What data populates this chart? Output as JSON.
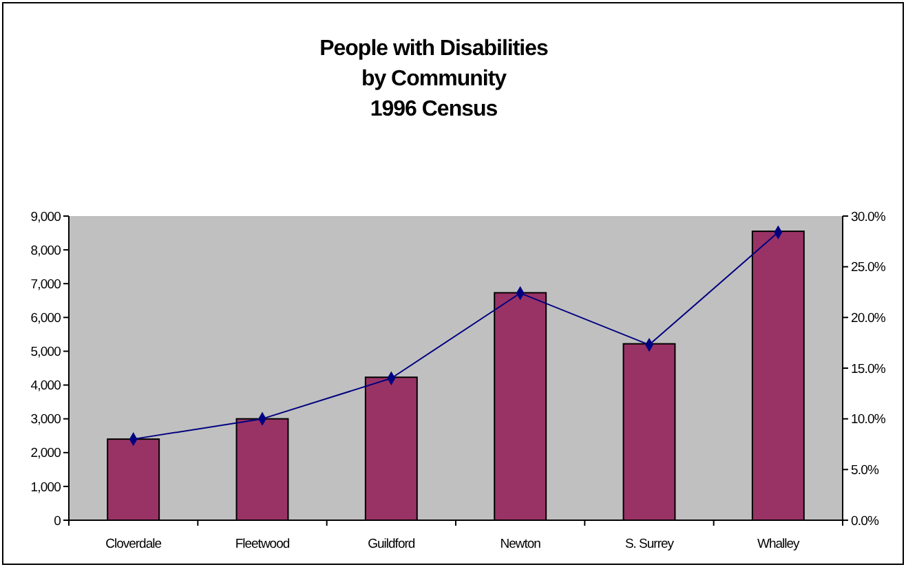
{
  "chart_data": {
    "type": "bar",
    "title": "People with Disabilities\nby Community\n1996 Census",
    "categories": [
      "Cloverdale",
      "Fleetwood",
      "Guildford",
      "Newton",
      "S. Surrey",
      "Whalley"
    ],
    "series": [
      {
        "color": "#993366",
        "values": [
          2400,
          3000,
          4230,
          6730,
          5220,
          8550
        ]
      },
      {
        "type": "line",
        "axis": "y2",
        "color": "#000080",
        "marker": "diamond",
        "values": [
          8.0,
          10.0,
          14.0,
          22.4,
          17.3,
          28.4
        ]
      }
    ],
    "ylim": [
      0,
      9000
    ],
    "yticks": [
      {
        "value": 0,
        "label": "0"
      },
      {
        "value": 1000,
        "label": "1,000"
      },
      {
        "value": 2000,
        "label": "2,000"
      },
      {
        "value": 3000,
        "label": "3,000"
      },
      {
        "value": 4000,
        "label": "4,000"
      },
      {
        "value": 5000,
        "label": "5,000"
      },
      {
        "value": 6000,
        "label": "6,000"
      },
      {
        "value": 7000,
        "label": "7,000"
      },
      {
        "value": 8000,
        "label": "8,000"
      },
      {
        "value": 9000,
        "label": "9,000"
      }
    ],
    "y2lim": [
      0,
      30
    ],
    "y2ticks": [
      {
        "value": 0,
        "label": "0.0%"
      },
      {
        "value": 5,
        "label": "5.0%"
      },
      {
        "value": 10,
        "label": "10.0%"
      },
      {
        "value": 15,
        "label": "15.0%"
      },
      {
        "value": 20,
        "label": "20.0%"
      },
      {
        "value": 25,
        "label": "25.0%"
      },
      {
        "value": 30,
        "label": "30.0%"
      }
    ],
    "grid": false
  }
}
